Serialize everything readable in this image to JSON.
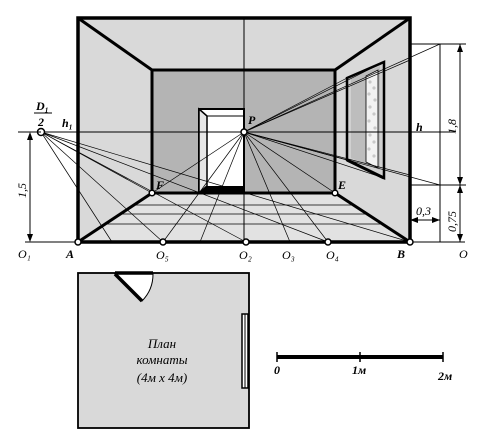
{
  "points": {
    "D1": "D₁",
    "two": "2",
    "h1": "h₁",
    "P": "P",
    "h": "h",
    "F": "F",
    "E": "E",
    "A": "A",
    "B": "B",
    "O": "O",
    "O1": "O₁",
    "O2": "O₂",
    "O3": "O₃",
    "O4": "O₄",
    "O5": "O₅"
  },
  "dimensions": {
    "height_left": "1,5",
    "height_right_top": "1,8",
    "height_right_bottom": "0,75",
    "offset": "0,3"
  },
  "plan": {
    "line1": "План",
    "line2": "комнаты",
    "line3": "(4м х 4м)"
  },
  "scale": {
    "zero": "0",
    "one": "1м",
    "two": "2м"
  },
  "colors": {
    "wall": "#d9d9d9",
    "back_wall": "#b4b4b4",
    "floor": "#e2e2e2",
    "window_panel": "#f2f2f2",
    "window_pattern": "#c8c8c8",
    "line": "#000000"
  }
}
